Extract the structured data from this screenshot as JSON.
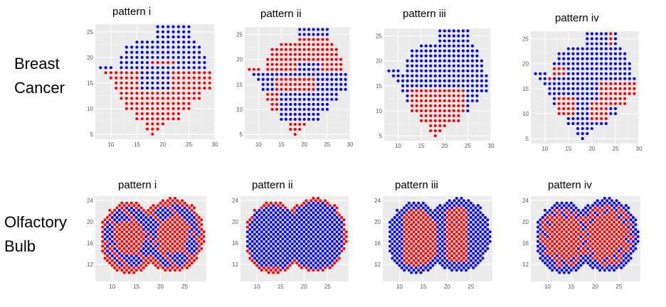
{
  "rows": [
    {
      "label_line1": "Breast",
      "label_line2": "Cancer"
    },
    {
      "label_line1": "Olfactory",
      "label_line2": "Bulb"
    }
  ],
  "colors": {
    "panel_bg": "#ebebeb",
    "grid": "#ffffff",
    "group_a": "#ff0000",
    "group_b": "#0000ff",
    "tick_text": "#5a5a5a"
  },
  "chart_data": [
    {
      "type": "scatter",
      "row": "Breast Cancer",
      "title": "pattern i",
      "xticks": [
        10,
        15,
        20,
        25,
        30
      ],
      "yticks": [
        5,
        10,
        15,
        20,
        25
      ],
      "xlim": [
        7,
        30
      ],
      "ylim": [
        4,
        26.5
      ],
      "shape": "breast",
      "pattern": "i",
      "series": [
        {
          "name": "",
          "color": "#ff0000"
        },
        {
          "name": "",
          "color": "#0000ff"
        }
      ]
    },
    {
      "type": "scatter",
      "row": "Breast Cancer",
      "title": "pattern ii",
      "xticks": [
        10,
        15,
        20,
        25,
        30
      ],
      "yticks": [
        5,
        10,
        15,
        20,
        25
      ],
      "xlim": [
        7,
        30
      ],
      "ylim": [
        4,
        26.5
      ],
      "shape": "breast",
      "pattern": "ii",
      "series": [
        {
          "name": "",
          "color": "#ff0000"
        },
        {
          "name": "",
          "color": "#0000ff"
        }
      ]
    },
    {
      "type": "scatter",
      "row": "Breast Cancer",
      "title": "pattern iii",
      "xticks": [
        10,
        15,
        20,
        25,
        30
      ],
      "yticks": [
        5,
        10,
        15,
        20,
        25
      ],
      "xlim": [
        7,
        30
      ],
      "ylim": [
        4,
        26.5
      ],
      "shape": "breast",
      "pattern": "iii",
      "series": [
        {
          "name": "",
          "color": "#ff0000"
        },
        {
          "name": "",
          "color": "#0000ff"
        }
      ]
    },
    {
      "type": "scatter",
      "row": "Breast Cancer",
      "title": "pattern iv",
      "xticks": [
        10,
        15,
        20,
        25,
        30
      ],
      "yticks": [
        5,
        10,
        15,
        20,
        25
      ],
      "xlim": [
        7,
        30
      ],
      "ylim": [
        4,
        26.5
      ],
      "shape": "breast",
      "pattern": "iv",
      "series": [
        {
          "name": "",
          "color": "#ff0000"
        },
        {
          "name": "",
          "color": "#0000ff"
        }
      ]
    },
    {
      "type": "scatter",
      "row": "Olfactory Bulb",
      "title": "pattern i",
      "xticks": [
        10,
        15,
        20,
        25
      ],
      "yticks": [
        12,
        16,
        20,
        24
      ],
      "xlim": [
        6.5,
        29.5
      ],
      "ylim": [
        8.8,
        24.8
      ],
      "shape": "bulb",
      "pattern": "i",
      "series": [
        {
          "name": "",
          "color": "#ff0000"
        },
        {
          "name": "",
          "color": "#0000ff"
        }
      ]
    },
    {
      "type": "scatter",
      "row": "Olfactory Bulb",
      "title": "pattern ii",
      "xticks": [
        10,
        15,
        20,
        25
      ],
      "yticks": [
        12,
        16,
        20,
        24
      ],
      "xlim": [
        6.5,
        29.5
      ],
      "ylim": [
        8.8,
        24.8
      ],
      "shape": "bulb",
      "pattern": "ii",
      "series": [
        {
          "name": "",
          "color": "#ff0000"
        },
        {
          "name": "",
          "color": "#0000ff"
        }
      ]
    },
    {
      "type": "scatter",
      "row": "Olfactory Bulb",
      "title": "pattern iii",
      "xticks": [
        10,
        15,
        20,
        25
      ],
      "yticks": [
        12,
        16,
        20,
        24
      ],
      "xlim": [
        6.5,
        29.5
      ],
      "ylim": [
        8.8,
        24.8
      ],
      "shape": "bulb",
      "pattern": "iii",
      "series": [
        {
          "name": "",
          "color": "#ff0000"
        },
        {
          "name": "",
          "color": "#0000ff"
        }
      ]
    },
    {
      "type": "scatter",
      "row": "Olfactory Bulb",
      "title": "pattern iv",
      "xticks": [
        10,
        15,
        20,
        25
      ],
      "yticks": [
        12,
        16,
        20,
        24
      ],
      "xlim": [
        6.5,
        29.5
      ],
      "ylim": [
        8.8,
        24.8
      ],
      "shape": "bulb",
      "pattern": "iv",
      "series": [
        {
          "name": "",
          "color": "#ff0000"
        },
        {
          "name": "",
          "color": "#0000ff"
        }
      ]
    }
  ]
}
